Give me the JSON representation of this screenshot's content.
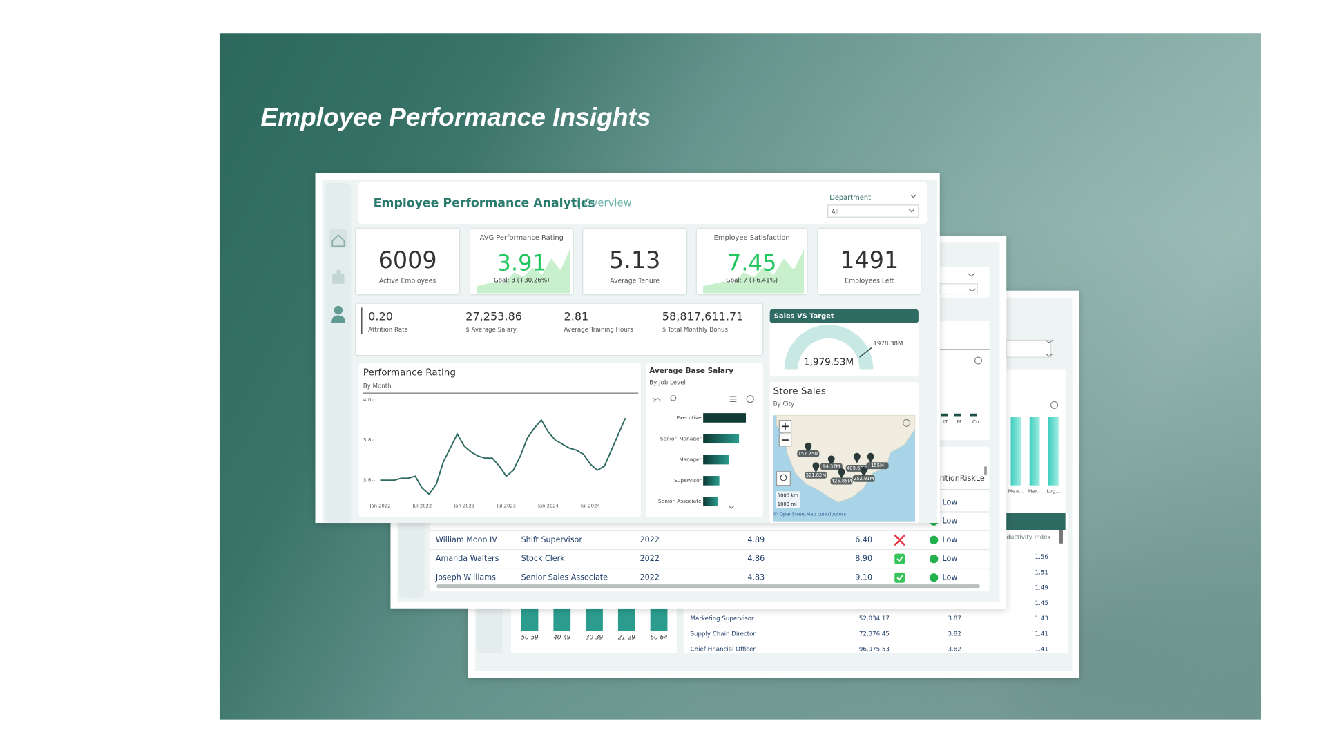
{
  "slide_title": "Employee Performance Insights",
  "front": {
    "header": {
      "title": "Employee Performance Analytics",
      "subtitle": "Overview",
      "filter_label": "Department",
      "filter_value": "All"
    },
    "kpis": [
      {
        "value": "6009",
        "label": "Active Employees"
      },
      {
        "title": "AVG Performance Rating",
        "value": "3.91",
        "goal": "Goal: 3 (+30.26%)"
      },
      {
        "value": "5.13",
        "label": "Average Tenure"
      },
      {
        "title": "Employee Satisfaction",
        "value": "7.45",
        "goal": "Goal: 7 (+6.41%)"
      },
      {
        "value": "1491",
        "label": "Employees Left"
      }
    ],
    "stats": [
      {
        "value": "0.20",
        "label": "Attrition Rate"
      },
      {
        "value": "27,253.86",
        "label": "$ Average Salary"
      },
      {
        "value": "2.81",
        "label": "Average Training Hours"
      },
      {
        "value": "58,817,611.71",
        "label": "$ Total Monthly Bonus"
      }
    ],
    "gauge": {
      "title": "Sales VS Target",
      "value": "1,979.53M",
      "target": "1978.38M"
    },
    "map": {
      "title": "Store Sales",
      "subtitle": "By City",
      "pin_labels": [
        "157.75M",
        "94.37M",
        "489.62M",
        "155M",
        "321.82M",
        "425.85M",
        "252.91M"
      ],
      "scale_km": "3000 km",
      "scale_mi": "1000 mi",
      "attribution": "© OpenStreetMap contributors"
    }
  },
  "chart_data": [
    {
      "type": "line",
      "title": "Performance Rating",
      "subtitle": "By Month",
      "color": "#2f6b62",
      "categories": [
        "Jan 2022",
        null,
        null,
        null,
        null,
        null,
        "Jul 2022",
        null,
        null,
        null,
        null,
        null,
        "Jan 2023",
        null,
        null,
        null,
        null,
        null,
        "Jul 2023",
        null,
        null,
        null,
        null,
        null,
        "Jan 2024",
        null,
        null,
        null,
        null,
        null,
        "Jul 2024",
        null,
        null,
        null,
        null,
        null
      ],
      "values": [
        3.6,
        3.6,
        3.6,
        3.61,
        3.61,
        3.62,
        3.56,
        3.53,
        3.58,
        3.69,
        3.76,
        3.83,
        3.77,
        3.74,
        3.72,
        3.71,
        3.71,
        3.67,
        3.62,
        3.65,
        3.72,
        3.81,
        3.86,
        3.9,
        3.84,
        3.8,
        3.78,
        3.76,
        3.75,
        3.73,
        3.68,
        3.65,
        3.67,
        3.75,
        3.83,
        3.91
      ],
      "ylim": [
        3.5,
        4.0
      ],
      "yticks": [
        3.6,
        3.8,
        {
          "value": 4,
          "label": "4.0"
        }
      ]
    },
    {
      "type": "bar",
      "title": "Average Base Salary",
      "subtitle": "By Job Level",
      "color": "#1f6f64",
      "categories": [
        "Executive",
        "Senior_Manager",
        "Manager",
        "Supervisor",
        "Senior_Associate"
      ],
      "values": [
        50,
        42,
        30,
        19,
        17
      ]
    }
  ],
  "middle": {
    "bar_labels": [
      "IT",
      "M...",
      "Cu..."
    ],
    "risk_header": "ritionRiskLe",
    "partial_risks": [
      "Low",
      "Low"
    ],
    "rows": [
      [
        "William Moon IV",
        "Shift Supervisor",
        "2022",
        "4.89",
        "6.40",
        "Low"
      ],
      [
        "Amanda Walters",
        "Stock Clerk",
        "2022",
        "4.86",
        "8.90",
        "Low"
      ],
      [
        "Joseph Williams",
        "Senior Sales Associate",
        "2022",
        "4.83",
        "9.10",
        "Low"
      ]
    ]
  },
  "back": {
    "bar_labels": [
      "Mea...",
      "Mar...",
      "Log..."
    ],
    "index_header": "ductivity Index",
    "index_values": [
      "1.56",
      "1.51",
      "1.49",
      "1.45",
      "1.43",
      "1.41",
      "1.41"
    ],
    "age_groups": [
      "50-59",
      "40-49",
      "30-39",
      "21-29",
      "60-64"
    ],
    "rows": [
      [
        "Marketing Supervisor",
        "52,034.17",
        "3.87"
      ],
      [
        "Supply Chain Director",
        "72,376.45",
        "3.82"
      ],
      [
        "Chief Financial Officer",
        "96,975.53",
        "3.82"
      ]
    ]
  }
}
